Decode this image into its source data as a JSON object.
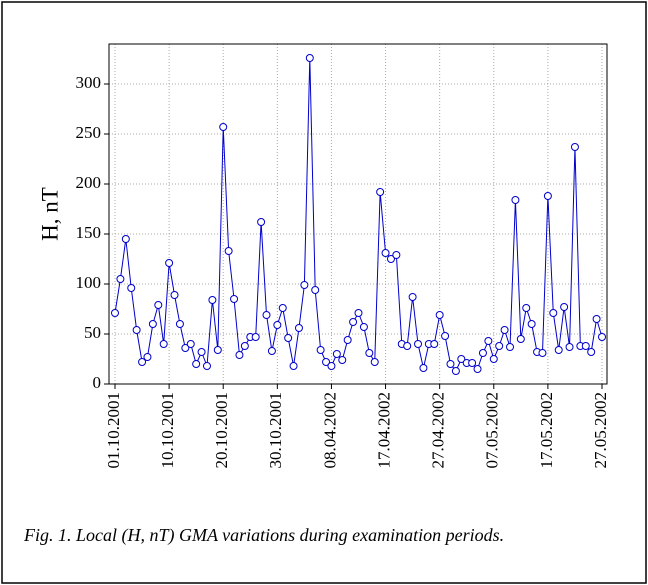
{
  "chart_data": {
    "type": "line",
    "y_label": "H, nT",
    "caption": "Fig. 1. Local (H, nT) GMA variations during examination periods.",
    "categories": [
      "01.10.2001",
      null,
      null,
      null,
      null,
      null,
      null,
      null,
      null,
      null,
      "10.10.2001",
      null,
      null,
      null,
      null,
      null,
      null,
      null,
      null,
      null,
      "20.10.2001",
      null,
      null,
      null,
      null,
      null,
      null,
      null,
      null,
      null,
      "30.10.2001",
      null,
      null,
      null,
      null,
      null,
      null,
      null,
      null,
      null,
      "08.04.2002",
      null,
      null,
      null,
      null,
      null,
      null,
      null,
      null,
      null,
      "17.04.2002",
      null,
      null,
      null,
      null,
      null,
      null,
      null,
      null,
      null,
      "27.04.2002",
      null,
      null,
      null,
      null,
      null,
      null,
      null,
      null,
      null,
      "07.05.2002",
      null,
      null,
      null,
      null,
      null,
      null,
      null,
      null,
      null,
      "17.05.2002",
      null,
      null,
      null,
      null,
      null,
      null,
      null,
      null,
      null,
      "27.05.2002"
    ],
    "values": [
      71,
      105,
      145,
      96,
      54,
      22,
      27,
      60,
      79,
      40,
      121,
      89,
      60,
      36,
      40,
      20,
      32,
      18,
      84,
      34,
      257,
      133,
      85,
      29,
      38,
      47,
      47,
      162,
      69,
      33,
      59,
      76,
      46,
      18,
      56,
      99,
      326,
      94,
      34,
      22,
      18,
      30,
      24,
      44,
      62,
      71,
      57,
      31,
      22,
      192,
      131,
      125,
      129,
      40,
      38,
      87,
      40,
      16,
      40,
      40,
      69,
      48,
      20,
      13,
      25,
      21,
      21,
      15,
      31,
      43,
      25,
      38,
      54,
      37,
      184,
      45,
      76,
      60,
      32,
      31,
      188,
      71,
      34,
      77,
      37,
      237,
      38,
      38,
      32,
      65,
      47
    ],
    "color": "#0000cc",
    "marker": "circle",
    "ylim": [
      0,
      340
    ],
    "yticks": [
      0,
      50,
      100,
      150,
      200,
      250,
      300
    ],
    "grid": true
  }
}
